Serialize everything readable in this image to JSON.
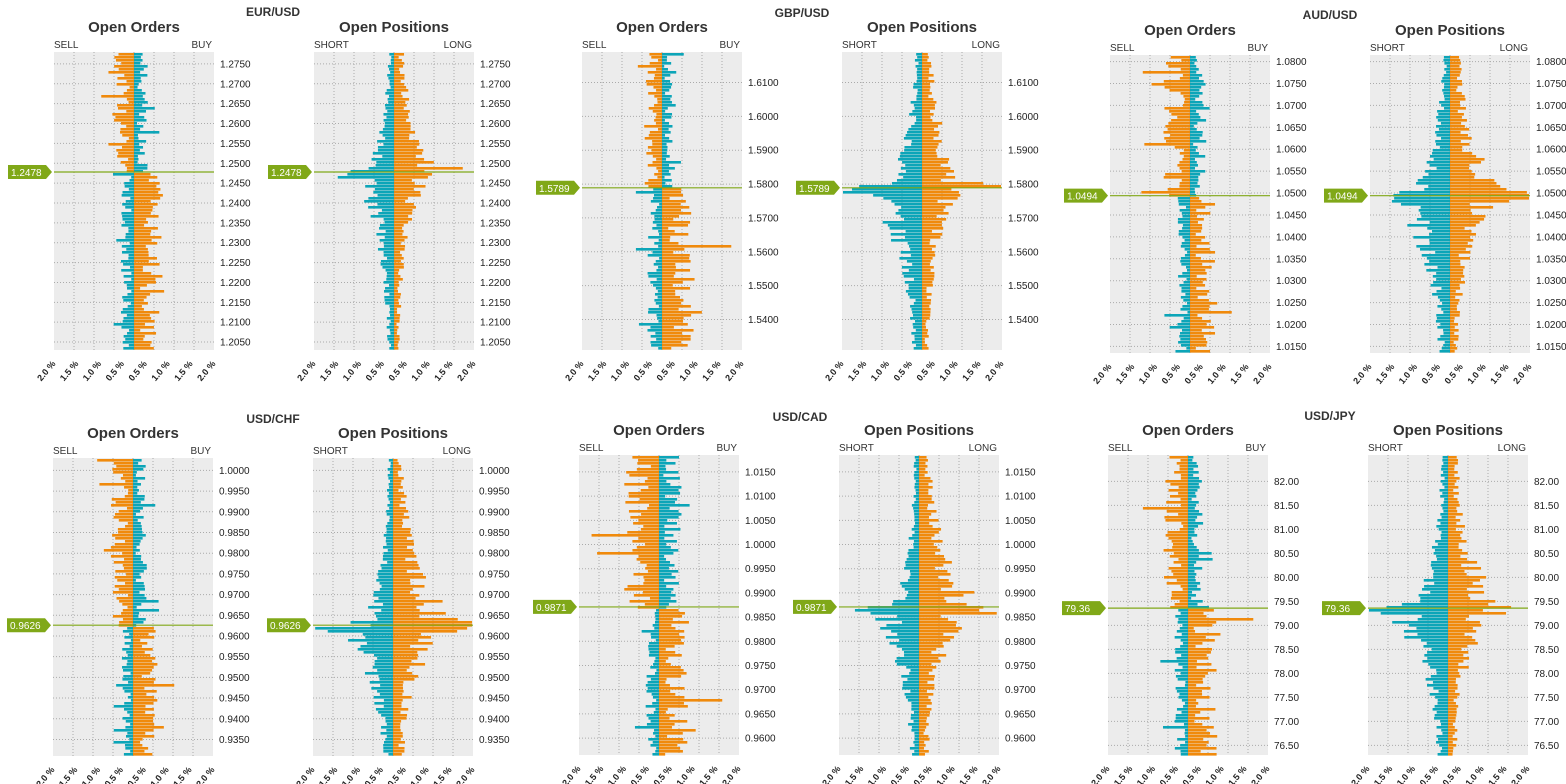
{
  "colors": {
    "buy": "#f08a0c",
    "sell": "#0ca5b8",
    "current": "#80a818",
    "panel_bg": "#ececec",
    "grid": "#aaaaaa"
  },
  "chart_data": [
    {
      "pair": "EUR/USD",
      "current_label": "1.2478",
      "current_price": 1.2478,
      "orders": {
        "title": "Open Orders",
        "left_label": "SELL",
        "right_label": "BUY"
      },
      "positions": {
        "title": "Open Positions",
        "left_label": "SHORT",
        "right_label": "LONG"
      },
      "y_ticks": [
        "1.2750",
        "1.2700",
        "1.2650",
        "1.2600",
        "1.2550",
        "1.2500",
        "1.2450",
        "1.2400",
        "1.2350",
        "1.2300",
        "1.2250",
        "1.2200",
        "1.2150",
        "1.2100",
        "1.2050"
      ],
      "y_range": [
        1.203,
        1.278
      ],
      "x_ticks": [
        "2.0 %",
        "1.5 %",
        "1.0 %",
        "0.5 %",
        "0.5 %",
        "1.0 %",
        "1.5 %",
        "2.0 %"
      ],
      "o_above": 0.7,
      "o_below": 0.9,
      "p_long_bias": 1.0,
      "p_short_bias": 1.0
    },
    {
      "pair": "GBP/USD",
      "current_label": "1.5789",
      "current_price": 1.5789,
      "orders": {
        "title": "Open Orders",
        "left_label": "SELL",
        "right_label": "BUY"
      },
      "positions": {
        "title": "Open Positions",
        "left_label": "SHORT",
        "right_label": "LONG"
      },
      "y_ticks": [
        "1.6100",
        "1.6000",
        "1.5900",
        "1.5800",
        "1.5700",
        "1.5600",
        "1.5500",
        "1.5400"
      ],
      "y_range": [
        1.531,
        1.619
      ],
      "x_ticks": [
        "2.0 %",
        "1.5 %",
        "1.0 %",
        "0.5 %",
        "0.5 %",
        "1.0 %",
        "1.5 %",
        "2.0 %"
      ],
      "o_above": 0.5,
      "o_below": 1.0,
      "p_long_bias": 1.1,
      "p_short_bias": 1.4
    },
    {
      "pair": "AUD/USD",
      "current_label": "1.0494",
      "current_price": 1.0494,
      "orders": {
        "title": "Open Orders",
        "left_label": "SELL",
        "right_label": "BUY"
      },
      "positions": {
        "title": "Open Positions",
        "left_label": "SHORT",
        "right_label": "LONG"
      },
      "y_ticks": [
        "1.0800",
        "1.0750",
        "1.0700",
        "1.0650",
        "1.0600",
        "1.0550",
        "1.0500",
        "1.0450",
        "1.0400",
        "1.0350",
        "1.0300",
        "1.0250",
        "1.0200",
        "1.0150"
      ],
      "y_range": [
        1.0135,
        1.0815
      ],
      "x_ticks": [
        "2.0 %",
        "1.5 %",
        "1.0 %",
        "0.5 %",
        "0.5 %",
        "1.0 %",
        "1.5 %",
        "2.0 %"
      ],
      "o_above": 0.9,
      "o_below": 0.8,
      "p_long_bias": 1.3,
      "p_short_bias": 1.5
    },
    {
      "pair": "USD/CHF",
      "current_label": "0.9626",
      "current_price": 0.9626,
      "orders": {
        "title": "Open Orders",
        "left_label": "SELL",
        "right_label": "BUY"
      },
      "positions": {
        "title": "Open Positions",
        "left_label": "SHORT",
        "right_label": "LONG"
      },
      "y_ticks": [
        "1.0000",
        "0.9950",
        "0.9900",
        "0.9850",
        "0.9800",
        "0.9750",
        "0.9700",
        "0.9650",
        "0.9600",
        "0.9550",
        "0.9500",
        "0.9450",
        "0.9400",
        "0.9350"
      ],
      "y_range": [
        0.931,
        1.003
      ],
      "x_ticks": [
        "2.0 %",
        "1.5 %",
        "1.0 %",
        "0.5 %",
        "0.5 %",
        "1.0 %",
        "1.5 %",
        "2.0 %"
      ],
      "o_above": 0.7,
      "o_below": 0.7,
      "p_long_bias": 1.5,
      "p_short_bias": 1.2
    },
    {
      "pair": "USD/CAD",
      "current_label": "0.9871",
      "current_price": 0.9871,
      "orders": {
        "title": "Open Orders",
        "left_label": "SELL",
        "right_label": "BUY"
      },
      "positions": {
        "title": "Open Positions",
        "left_label": "SHORT",
        "right_label": "LONG"
      },
      "y_ticks": [
        "1.0150",
        "1.0100",
        "1.0050",
        "1.0000",
        "0.9950",
        "0.9900",
        "0.9850",
        "0.9800",
        "0.9750",
        "0.9700",
        "0.9650",
        "0.9600"
      ],
      "y_range": [
        0.9565,
        1.0185
      ],
      "x_ticks": [
        "2.0 %",
        "1.5 %",
        "1.0 %",
        "0.5 %",
        "0.5 %",
        "1.0 %",
        "1.5 %",
        "2.0 %"
      ],
      "o_above": 1.3,
      "o_below": 0.9,
      "p_long_bias": 1.5,
      "p_short_bias": 1.1
    },
    {
      "pair": "USD/JPY",
      "current_label": "79.36",
      "current_price": 79.36,
      "orders": {
        "title": "Open Orders",
        "left_label": "SELL",
        "right_label": "BUY"
      },
      "positions": {
        "title": "Open Positions",
        "left_label": "SHORT",
        "right_label": "LONG"
      },
      "y_ticks": [
        "82.00",
        "81.50",
        "81.00",
        "80.50",
        "80.00",
        "79.50",
        "79.00",
        "78.50",
        "78.00",
        "77.50",
        "77.00",
        "76.50"
      ],
      "y_range": [
        76.3,
        82.55
      ],
      "x_ticks": [
        "2.0 %",
        "1.5 %",
        "1.0 %",
        "0.5 %",
        "0.5 %",
        "1.0 %",
        "1.5 %",
        "2.0 %"
      ],
      "o_above": 0.8,
      "o_below": 0.9,
      "p_long_bias": 1.3,
      "p_short_bias": 1.4
    }
  ]
}
